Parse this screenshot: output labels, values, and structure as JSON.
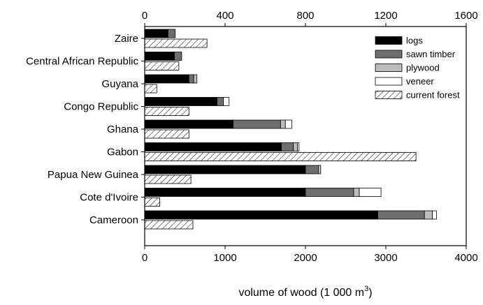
{
  "chart_data": {
    "type": "bar",
    "orientation": "horizontal",
    "stacked": true,
    "categories": [
      "Zaire",
      "Central African Republic",
      "Guyana",
      "Congo Republic",
      "Ghana",
      "Gabon",
      "Papua New Guinea",
      "Cote d'Ivoire",
      "Cameroon"
    ],
    "series": [
      {
        "name": "logs",
        "color": "#000000",
        "pattern": "solid",
        "axis": "bottom",
        "values": [
          290,
          370,
          550,
          900,
          1100,
          1700,
          2000,
          2000,
          2900
        ]
      },
      {
        "name": "sawn timber",
        "color": "#6e6e6e",
        "pattern": "solid",
        "axis": "bottom",
        "values": [
          90,
          90,
          60,
          80,
          590,
          150,
          160,
          600,
          580
        ]
      },
      {
        "name": "plywood",
        "color": "#bdbdbd",
        "pattern": "solid",
        "axis": "bottom",
        "values": [
          0,
          0,
          40,
          0,
          60,
          50,
          30,
          70,
          100
        ]
      },
      {
        "name": "veneer",
        "color": "#ffffff",
        "pattern": "solid",
        "axis": "bottom",
        "values": [
          0,
          0,
          0,
          70,
          80,
          20,
          0,
          270,
          50
        ]
      },
      {
        "name": "current forest",
        "color": "#000000",
        "pattern": "hatched",
        "axis": "top",
        "values": [
          310,
          170,
          60,
          220,
          220,
          1350,
          230,
          75,
          240
        ]
      }
    ],
    "xlabel": "volume of wood (1 000 m",
    "xlabel_superscript": "3",
    "xlabel_suffix": ")",
    "bottom_axis": {
      "min": 0,
      "max": 4000,
      "ticks": [
        "0",
        "1000",
        "2000",
        "3000",
        "4000"
      ]
    },
    "top_axis": {
      "min": 0,
      "max": 1600,
      "ticks": [
        "0",
        "400",
        "800",
        "1200",
        "1600"
      ]
    },
    "legend_position": "top-right",
    "grid": false
  }
}
